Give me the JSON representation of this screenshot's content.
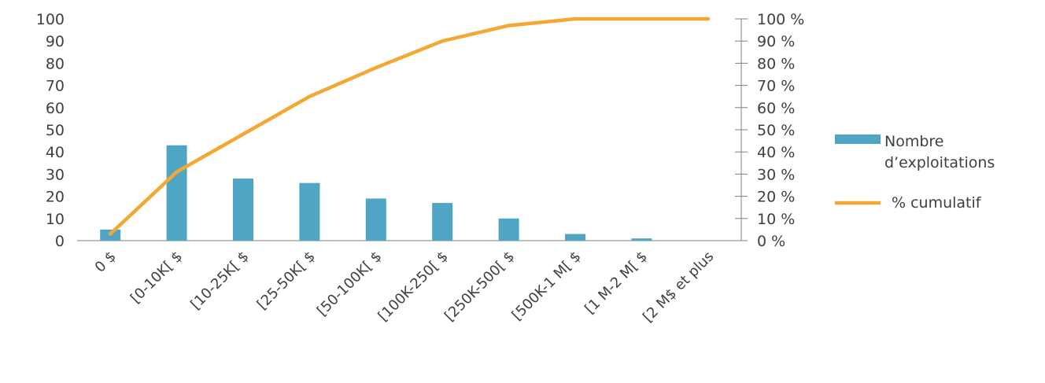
{
  "chart_data": {
    "type": "bar",
    "categories": [
      "0 $",
      "[0-10K[ $",
      "[10-25K[ $",
      "[25-50K[ $",
      "[50-100K[ $",
      "[100K-250[ $",
      "[250K-500[ $",
      "[500K-1 M[ $",
      "[1 M-2 M[ $",
      "[2 M$ et plus"
    ],
    "series": [
      {
        "name": "Nombre d’exploitations",
        "type": "bar",
        "axis": "left",
        "color": "#4fa6c4",
        "values": [
          5,
          43,
          28,
          26,
          19,
          17,
          10,
          3,
          1,
          0
        ]
      },
      {
        "name": "% cumulatif",
        "type": "line",
        "axis": "right",
        "color": "#f5a734",
        "values": [
          3,
          31,
          48,
          65,
          78,
          90,
          97,
          100,
          100,
          100
        ]
      }
    ],
    "y_left": {
      "ylim": [
        0,
        100
      ],
      "ticks": [
        0,
        10,
        20,
        30,
        40,
        50,
        60,
        70,
        80,
        90,
        100
      ],
      "tick_labels": [
        "0",
        "10",
        "20",
        "30",
        "40",
        "50",
        "60",
        "70",
        "80",
        "90",
        "100"
      ]
    },
    "y_right": {
      "ylim": [
        0,
        100
      ],
      "ticks": [
        0,
        10,
        20,
        30,
        40,
        50,
        60,
        70,
        80,
        90,
        100
      ],
      "tick_labels": [
        "0 %",
        "10 %",
        "20 %",
        "30 %",
        "40 %",
        "50 %",
        "60 %",
        "70 %",
        "80 %",
        "90 %",
        "100 %"
      ]
    },
    "legend": {
      "placement": "right",
      "items": [
        {
          "label_lines": [
            "Nombre",
            "d’exploitations"
          ],
          "symbol": "bar",
          "color": "#4fa6c4"
        },
        {
          "label_lines": [
            "% cumulatif"
          ],
          "symbol": "line",
          "color": "#f5a734"
        }
      ]
    },
    "grid": false,
    "title": "",
    "xlabel": "",
    "ylabel": ""
  }
}
